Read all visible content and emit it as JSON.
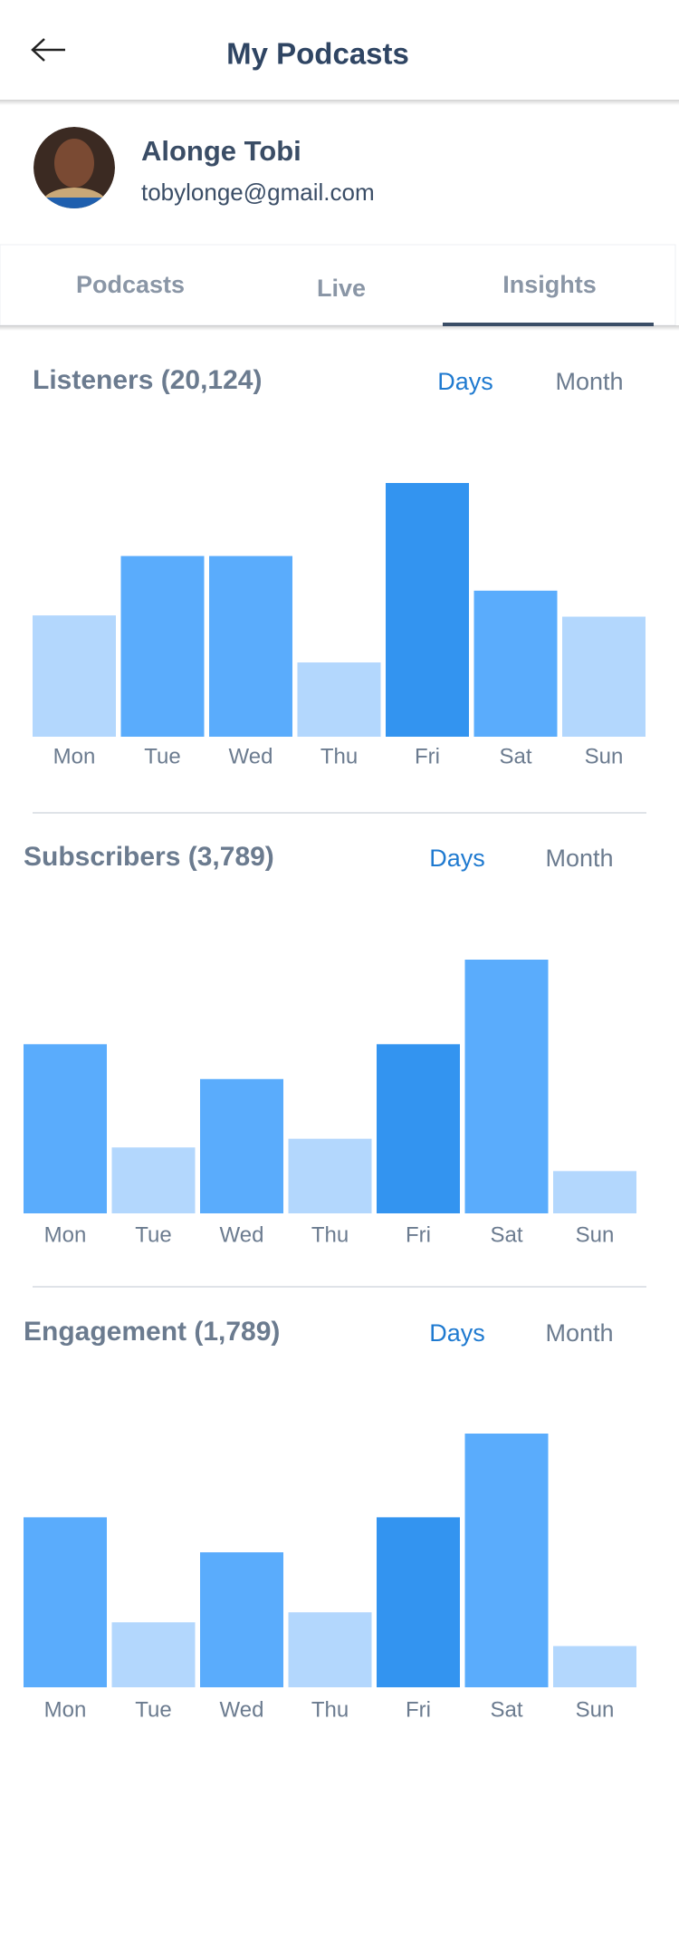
{
  "header": {
    "title": "My Podcasts"
  },
  "profile": {
    "name": "Alonge Tobi",
    "email": "tobylonge@gmail.com"
  },
  "tabs": [
    "Podcasts",
    "Live",
    "Insights"
  ],
  "chart_data": [
    {
      "type": "bar",
      "title": "Listeners (20,124)",
      "period_options": [
        "Days",
        "Month"
      ],
      "categories": [
        "Mon",
        "Tue",
        "Wed",
        "Thu",
        "Fri",
        "Sat",
        "Sun"
      ],
      "values": [
        98,
        146,
        146,
        60,
        205,
        118,
        97
      ],
      "colors": [
        "#b3d7fd",
        "#5aacfc",
        "#5aacfc",
        "#b3d7fd",
        "#3394f0",
        "#5aacfc",
        "#b3d7fd"
      ]
    },
    {
      "type": "bar",
      "title": "Subscribers (3,789)",
      "period_options": [
        "Days",
        "Month"
      ],
      "categories": [
        "Mon",
        "Tue",
        "Wed",
        "Thu",
        "Fri",
        "Sat",
        "Sun"
      ],
      "values": [
        136,
        53,
        108,
        60,
        136,
        204,
        34
      ],
      "colors": [
        "#5aacfc",
        "#b3d7fd",
        "#5aacfc",
        "#b3d7fd",
        "#3394f0",
        "#5aacfc",
        "#b3d7fd"
      ]
    },
    {
      "type": "bar",
      "title": "Engagement (1,789)",
      "period_options": [
        "Days",
        "Month"
      ],
      "categories": [
        "Mon",
        "Tue",
        "Wed",
        "Thu",
        "Fri",
        "Sat",
        "Sun"
      ],
      "values": [
        136,
        52,
        108,
        60,
        136,
        203,
        33
      ],
      "colors": [
        "#5aacfc",
        "#b3d7fd",
        "#5aacfc",
        "#b3d7fd",
        "#3394f0",
        "#5aacfc",
        "#b3d7fd"
      ]
    }
  ]
}
